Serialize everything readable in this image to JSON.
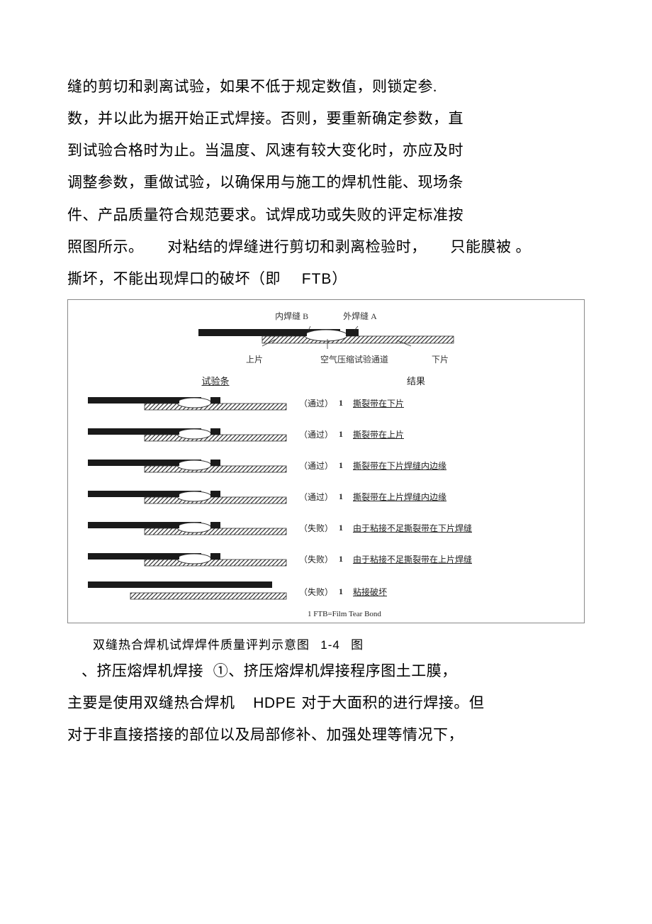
{
  "paragraph1": {
    "l1": "缝的剪切和剥离试验，如果不低于规定数值，则锁定参.",
    "l2": "数，并以此为据开始正式焊接。否则，要重新确定参数，直",
    "l3": "到试验合格时为止。当温度、风速有较大变化时，亦应及时",
    "l4": "调整参数，重做试验，以确保用与施工的焊机性能、现场条",
    "l5": "件、产品质量符合规范要求。试焊成功或失败的评定标准按",
    "l6a": "照图所示。",
    "l6b": "对粘结的焊缝进行剪切和剥离检验时，",
    "l6c": "只能膜被",
    "l6d": "。",
    "l7a": "撕坏，不能出现焊口的破坏（即",
    "l7b": "FTB）"
  },
  "diagram": {
    "topLabelLeft": "内焊缝 B",
    "topLabelRight": "外焊缝 A",
    "bottomLeft": "上片",
    "bottomRight": "下片",
    "bottomCenter": "空气压缩试验通道",
    "headerSample": "试验条",
    "headerResult": "结果",
    "rows": [
      {
        "status": "（通过）",
        "idx": "1",
        "desc": "撕裂带在下片"
      },
      {
        "status": "（通过）",
        "idx": "1",
        "desc": "撕裂带在上片"
      },
      {
        "status": "（通过）",
        "idx": "1",
        "desc": "撕裂带在下片焊缝内边缘"
      },
      {
        "status": "（通过）",
        "idx": "1",
        "desc": "撕裂带在上片焊缝内边缘"
      },
      {
        "status": "（失败）",
        "idx": "1",
        "desc": "由于粘接不足撕裂带在下片焊缝"
      },
      {
        "status": "（失败）",
        "idx": "1",
        "desc": "由于粘接不足撕裂带在上片焊缝"
      },
      {
        "status": "（失败）",
        "idx": "1",
        "desc": "粘接破坏"
      }
    ],
    "footnote": "1  FTB=Film Tear Bond",
    "colors": {
      "dark": "#1a1a1a",
      "hatch": "#333333",
      "border": "#888888"
    }
  },
  "caption": {
    "text": "双缝热合焊机试焊焊件质量评判示意图",
    "num": "1-4",
    "suffix": "图"
  },
  "paragraph2": {
    "l1a": "、挤压熔焊机焊接",
    "l1b": "①、挤压熔焊机焊接程序图土工膜，",
    "l2a": "主要是使用双缝热合焊机",
    "l2b": "HDPE",
    "l2c": "对于大面积的进行焊接。但",
    "l3": "对于非直接搭接的部位以及局部修补、加强处理等情况下，"
  }
}
